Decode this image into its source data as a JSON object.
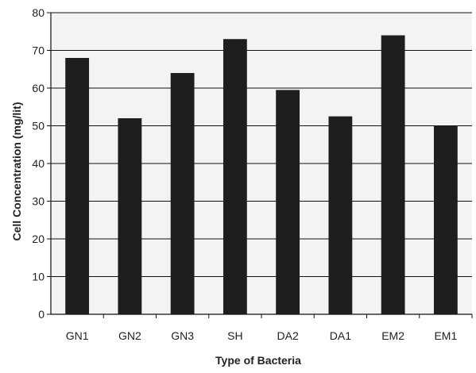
{
  "chart_data": {
    "type": "bar",
    "categories": [
      "GN1",
      "GN2",
      "GN3",
      "SH",
      "DA2",
      "DA1",
      "EM2",
      "EM1"
    ],
    "values": [
      68,
      52,
      64,
      73,
      59.5,
      52.5,
      74,
      50
    ],
    "title": "",
    "xlabel": "Type of Bacteria",
    "ylabel": "Cell Concentration (mg/lit)",
    "ylim": [
      0,
      80
    ],
    "yticks": [
      0,
      10,
      20,
      30,
      40,
      50,
      60,
      70,
      80
    ],
    "grid": true,
    "legend": "none",
    "colors": {
      "bar": "#1e1e1e",
      "plot_background": "#f3f3f3",
      "grid": "#111111",
      "axis": "#111111",
      "text": "#222222"
    }
  }
}
